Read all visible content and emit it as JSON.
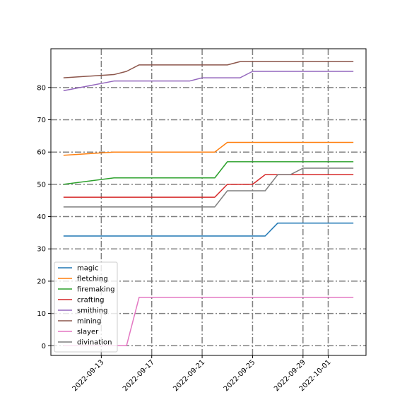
{
  "chart_data": {
    "type": "line",
    "title": "",
    "xlabel": "",
    "ylabel": "",
    "x_type": "date",
    "xlim": [
      "2022-09-09",
      "2022-10-04"
    ],
    "ylim": [
      -3,
      92
    ],
    "yticks": [
      0,
      10,
      20,
      30,
      40,
      50,
      60,
      70,
      80
    ],
    "xticks": [
      "2022-09-13",
      "2022-09-17",
      "2022-09-21",
      "2022-09-25",
      "2022-09-29",
      "2022-10-01"
    ],
    "grid": true,
    "legend_position": "lower-left",
    "series": [
      {
        "name": "magic",
        "color": "#1f77b4",
        "points": [
          [
            "2022-09-10",
            34
          ],
          [
            "2022-09-26",
            34
          ],
          [
            "2022-09-27",
            38
          ],
          [
            "2022-10-03",
            38
          ]
        ]
      },
      {
        "name": "fletching",
        "color": "#ff7f0e",
        "points": [
          [
            "2022-09-10",
            59
          ],
          [
            "2022-09-12",
            59.5
          ],
          [
            "2022-09-14",
            60
          ],
          [
            "2022-09-22",
            60
          ],
          [
            "2022-09-23",
            63
          ],
          [
            "2022-10-03",
            63
          ]
        ]
      },
      {
        "name": "firemaking",
        "color": "#2ca02c",
        "points": [
          [
            "2022-09-10",
            50
          ],
          [
            "2022-09-14",
            52
          ],
          [
            "2022-09-22",
            52
          ],
          [
            "2022-09-23",
            57
          ],
          [
            "2022-10-03",
            57
          ]
        ]
      },
      {
        "name": "crafting",
        "color": "#d62728",
        "points": [
          [
            "2022-09-10",
            46
          ],
          [
            "2022-09-22",
            46
          ],
          [
            "2022-09-23",
            50
          ],
          [
            "2022-09-25",
            50
          ],
          [
            "2022-09-26",
            53
          ],
          [
            "2022-10-03",
            53
          ]
        ]
      },
      {
        "name": "smithing",
        "color": "#9467bd",
        "points": [
          [
            "2022-09-10",
            79
          ],
          [
            "2022-09-14",
            82
          ],
          [
            "2022-09-20",
            82
          ],
          [
            "2022-09-21",
            83
          ],
          [
            "2022-09-24",
            83
          ],
          [
            "2022-09-25",
            85
          ],
          [
            "2022-10-03",
            85
          ]
        ]
      },
      {
        "name": "mining",
        "color": "#8c564b",
        "points": [
          [
            "2022-09-10",
            83
          ],
          [
            "2022-09-14",
            84
          ],
          [
            "2022-09-15",
            85
          ],
          [
            "2022-09-16",
            87
          ],
          [
            "2022-09-23",
            87
          ],
          [
            "2022-09-24",
            88
          ],
          [
            "2022-10-03",
            88
          ]
        ]
      },
      {
        "name": "slayer",
        "color": "#e377c2",
        "points": [
          [
            "2022-09-10",
            0
          ],
          [
            "2022-09-15",
            0
          ],
          [
            "2022-09-16",
            15
          ],
          [
            "2022-10-03",
            15
          ]
        ]
      },
      {
        "name": "divination",
        "color": "#7f7f7f",
        "points": [
          [
            "2022-09-10",
            43
          ],
          [
            "2022-09-22",
            43
          ],
          [
            "2022-09-23",
            48
          ],
          [
            "2022-09-26",
            48
          ],
          [
            "2022-09-27",
            53
          ],
          [
            "2022-09-28",
            53
          ],
          [
            "2022-09-29",
            55
          ],
          [
            "2022-10-03",
            55
          ]
        ]
      }
    ]
  }
}
